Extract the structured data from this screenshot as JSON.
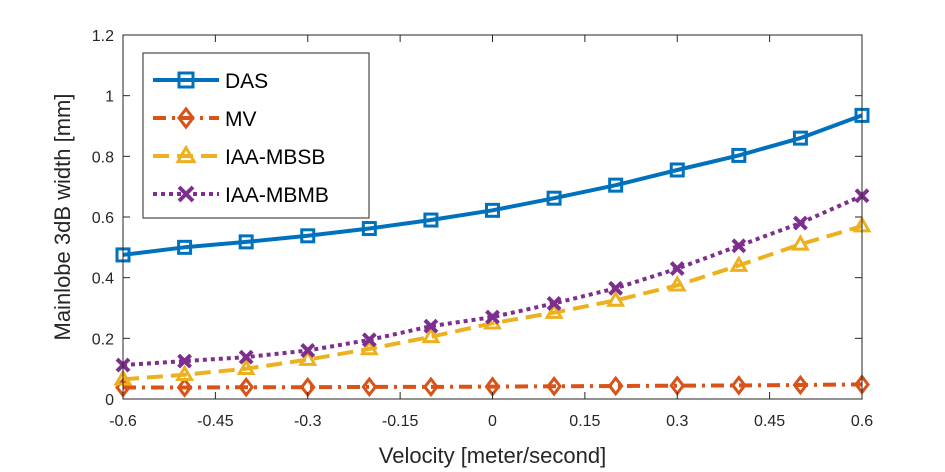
{
  "chart_data": {
    "type": "line",
    "title": "",
    "xlabel": "Velocity [meter/second]",
    "ylabel": "Mainlobe 3dB width [mm]",
    "xlim": [
      -0.6,
      0.6
    ],
    "ylim": [
      0,
      1.2
    ],
    "grid": false,
    "legend_position": "top-left",
    "xticks": [
      -0.6,
      -0.45,
      -0.3,
      -0.15,
      0,
      0.15,
      0.3,
      0.45,
      0.6
    ],
    "xtick_labels": [
      "-0.6",
      "-0.45",
      "-0.3",
      "-0.15",
      "0",
      "0.15",
      "0.3",
      "0.45",
      "0.6"
    ],
    "yticks": [
      0,
      0.2,
      0.4,
      0.6,
      0.8,
      1,
      1.2
    ],
    "ytick_labels": [
      "0",
      "0.2",
      "0.4",
      "0.6",
      "0.8",
      "1",
      "1.2"
    ],
    "x": [
      -0.6,
      -0.5,
      -0.4,
      -0.3,
      -0.2,
      -0.1,
      0,
      0.1,
      0.2,
      0.3,
      0.4,
      0.5,
      0.6
    ],
    "series": [
      {
        "name": "DAS",
        "color": "#0072BD",
        "line_style": "solid",
        "marker": "square",
        "values": [
          0.475,
          0.5,
          0.518,
          0.538,
          0.562,
          0.59,
          0.622,
          0.662,
          0.705,
          0.755,
          0.803,
          0.86,
          0.935
        ]
      },
      {
        "name": "MV",
        "color": "#D95319",
        "line_style": "dashdot",
        "marker": "diamond",
        "values": [
          0.038,
          0.038,
          0.039,
          0.039,
          0.04,
          0.04,
          0.041,
          0.042,
          0.043,
          0.044,
          0.045,
          0.046,
          0.048
        ]
      },
      {
        "name": "IAA-MBSB",
        "color": "#EDB120",
        "line_style": "dashed",
        "marker": "triangle",
        "values": [
          0.065,
          0.08,
          0.1,
          0.13,
          0.165,
          0.205,
          0.25,
          0.285,
          0.325,
          0.375,
          0.44,
          0.51,
          0.57
        ]
      },
      {
        "name": "IAA-MBMB",
        "color": "#7E2F8E",
        "line_style": "dotted",
        "marker": "x",
        "values": [
          0.112,
          0.125,
          0.138,
          0.16,
          0.195,
          0.24,
          0.27,
          0.315,
          0.365,
          0.43,
          0.505,
          0.58,
          0.67
        ]
      }
    ]
  }
}
